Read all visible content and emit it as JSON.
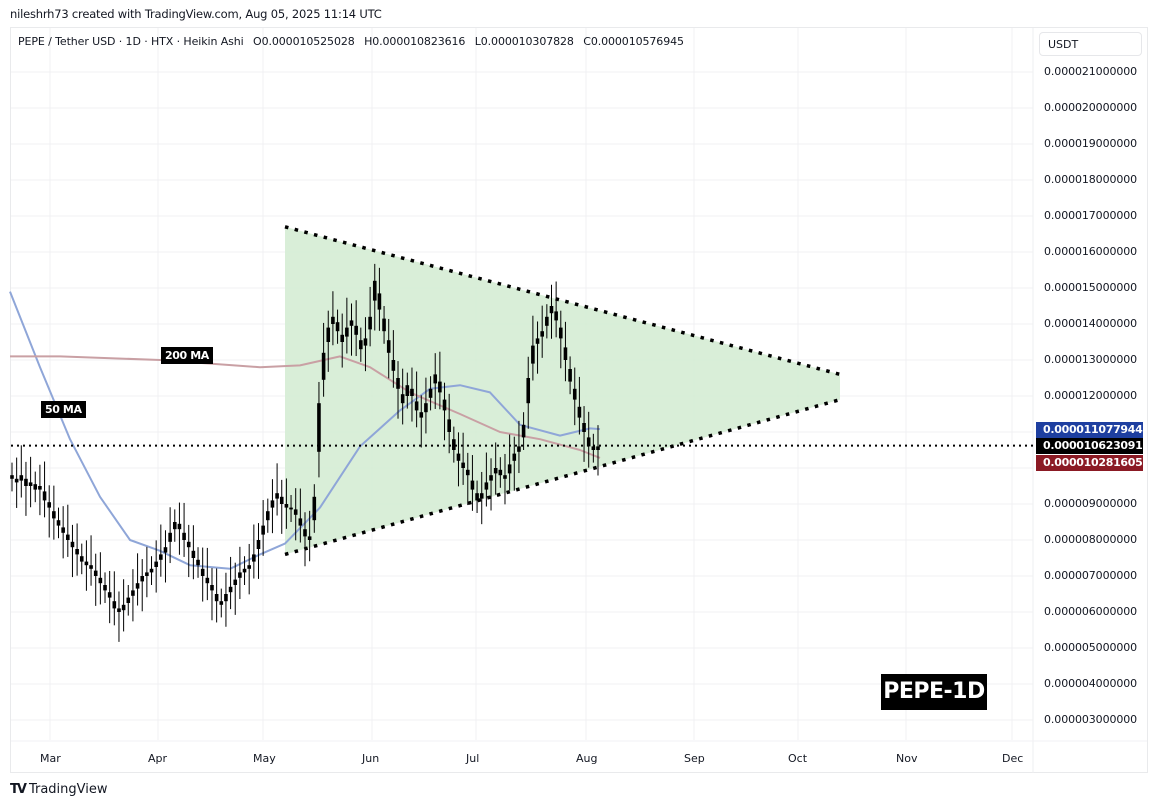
{
  "credit": "nileshrh73 created with TradingView.com, Aug 05, 2025 11:14 UTC",
  "legend": {
    "symbol": "PEPE / Tether USD · 1D · HTX · Heikin Ashi",
    "open": "O0.000010525028",
    "high": "H0.000010823616",
    "low": "L0.000010307828",
    "close": "C0.000010576945"
  },
  "price_axis": {
    "currency": "USDT",
    "ticks": [
      "0.000021000000",
      "0.000020000000",
      "0.000019000000",
      "0.000018000000",
      "0.000017000000",
      "0.000016000000",
      "0.000015000000",
      "0.000014000000",
      "0.000013000000",
      "0.000012000000",
      "0.000011000000",
      "0.000010000000",
      "0.000009000000",
      "0.000008000000",
      "0.000007000000",
      "0.000006000000",
      "0.000005000000",
      "0.000004000000",
      "0.000003000000"
    ],
    "tags": [
      {
        "label": "0.000011077944",
        "color": "#1e3fa0",
        "name": "ma50-price-tag"
      },
      {
        "label": "0.000010623091",
        "color": "#000000",
        "name": "last-price-tag"
      },
      {
        "label": "0.000010281605",
        "color": "#8b1a24",
        "name": "ma200-price-tag"
      }
    ]
  },
  "time_axis": [
    "Mar",
    "Apr",
    "May",
    "Jun",
    "Jul",
    "Aug",
    "Sep",
    "Oct",
    "Nov",
    "Dec"
  ],
  "annotations": {
    "ma200_label": "200 MA",
    "ma50_label": "50 MA",
    "badge": "PEPE-1D"
  },
  "footer": {
    "logo_mark": "TV",
    "logo_text": "TradingView"
  },
  "colors": {
    "ma50": "#8fa6d8",
    "ma200": "#c9a0a4",
    "triangle_fill": "#d5ecd4",
    "candle": "#000000",
    "grid": "#f0f1f3"
  },
  "chart_data": {
    "type": "candlestick",
    "title": "PEPE / Tether USD · 1D · HTX · Heikin Ashi",
    "ylabel": "USDT",
    "units": "1e-6 USDT",
    "ylim": [
      2.0,
      21.5
    ],
    "y_ticks": [
      21,
      20,
      19,
      18,
      17,
      16,
      15,
      14,
      13,
      12,
      11,
      10,
      9,
      8,
      7,
      6,
      5,
      4,
      3
    ],
    "x_ticks": [
      "Mar",
      "Apr",
      "May",
      "Jun",
      "Jul",
      "Aug",
      "Sep",
      "Oct",
      "Nov",
      "Dec"
    ],
    "last_price": 10.623091,
    "ohlc_last": {
      "open": 10.525028,
      "high": 10.823616,
      "low": 10.307828,
      "close": 10.576945
    },
    "candles_approx_close": [
      9.7,
      9.6,
      9.8,
      9.5,
      9.6,
      9.4,
      9.5,
      9.1,
      8.9,
      8.6,
      8.4,
      8.2,
      8.0,
      7.8,
      7.6,
      7.4,
      7.3,
      7.2,
      7.0,
      6.8,
      6.6,
      6.4,
      6.1,
      6.0,
      6.2,
      6.4,
      6.6,
      6.8,
      7.0,
      7.1,
      7.2,
      7.4,
      7.6,
      7.8,
      8.2,
      8.5,
      8.3,
      8.0,
      7.8,
      7.5,
      7.3,
      7.0,
      6.8,
      6.6,
      6.3,
      6.2,
      6.5,
      6.7,
      6.9,
      7.1,
      7.2,
      7.3,
      7.6,
      8.0,
      8.4,
      8.8,
      9.1,
      9.3,
      9.0,
      8.9,
      8.9,
      8.7,
      8.4,
      8.1,
      8.0,
      9.2,
      11.8,
      13.2,
      13.9,
      14.2,
      13.8,
      13.5,
      13.9,
      14.1,
      13.7,
      13.3,
      13.6,
      14.2,
      15.2,
      14.4,
      13.8,
      13.2,
      12.7,
      12.2,
      11.8,
      12.3,
      12.0,
      11.6,
      11.4,
      11.8,
      12.2,
      12.6,
      12.1,
      11.6,
      11.0,
      10.5,
      10.2,
      10.0,
      9.8,
      9.4,
      9.1,
      9.3,
      9.6,
      9.8,
      10.0,
      9.8,
      9.7,
      10.1,
      10.4,
      10.6,
      11.2,
      12.5,
      13.4,
      13.6,
      13.8,
      14.2,
      14.5,
      14.1,
      13.6,
      13.0,
      12.4,
      11.9,
      11.4,
      11.0,
      10.6,
      10.5,
      10.6
    ],
    "series": [
      {
        "name": "50 MA",
        "color": "#8fa6d8",
        "points": [
          [
            10,
            14.9
          ],
          [
            40,
            12.8
          ],
          [
            70,
            10.8
          ],
          [
            100,
            9.2
          ],
          [
            130,
            8.0
          ],
          [
            160,
            7.7
          ],
          [
            190,
            7.3
          ],
          [
            230,
            7.2
          ],
          [
            260,
            7.6
          ],
          [
            285,
            7.9
          ],
          [
            320,
            8.9
          ],
          [
            360,
            10.6
          ],
          [
            400,
            11.6
          ],
          [
            430,
            12.2
          ],
          [
            460,
            12.3
          ],
          [
            490,
            12.1
          ],
          [
            520,
            11.2
          ],
          [
            560,
            10.9
          ],
          [
            590,
            11.1
          ],
          [
            600,
            11.08
          ]
        ]
      },
      {
        "name": "200 MA",
        "color": "#c9a0a4",
        "points": [
          [
            10,
            13.1
          ],
          [
            60,
            13.1
          ],
          [
            160,
            13.0
          ],
          [
            260,
            12.8
          ],
          [
            300,
            12.85
          ],
          [
            340,
            13.1
          ],
          [
            370,
            12.8
          ],
          [
            410,
            12.1
          ],
          [
            460,
            11.5
          ],
          [
            500,
            11.0
          ],
          [
            540,
            10.8
          ],
          [
            580,
            10.5
          ],
          [
            600,
            10.28
          ]
        ]
      }
    ],
    "patterns": [
      {
        "type": "symmetrical-triangle",
        "upper_line": [
          [
            285,
            16.7
          ],
          [
            840,
            12.6
          ]
        ],
        "lower_line": [
          [
            285,
            7.6
          ],
          [
            840,
            11.9
          ]
        ]
      }
    ]
  }
}
